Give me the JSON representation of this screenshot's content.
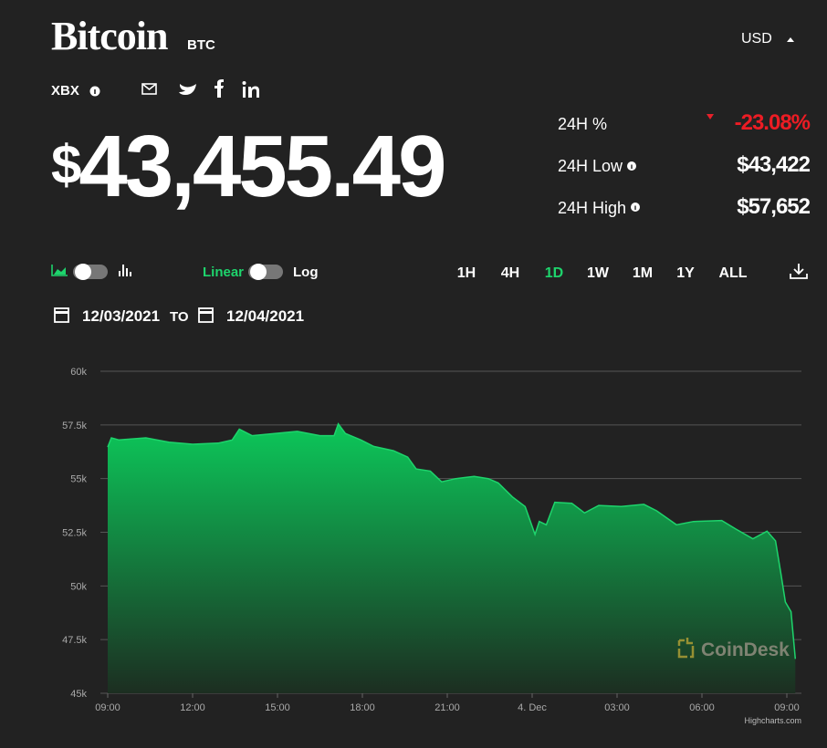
{
  "header": {
    "title": "Bitcoin",
    "symbol": "BTC",
    "currency": "USD",
    "index": "XBX"
  },
  "price": {
    "symbol": "$",
    "amount": "43,455.49"
  },
  "stats": [
    {
      "label": "24H %",
      "value": "-23.08%"
    },
    {
      "label": "24H Low",
      "value": "$43,422"
    },
    {
      "label": "24H High",
      "value": "$57,652"
    }
  ],
  "controls": {
    "scale_options": [
      "Linear",
      "Log"
    ],
    "ranges": [
      "1H",
      "4H",
      "1D",
      "1W",
      "1M",
      "1Y",
      "ALL"
    ],
    "active_range": "1D"
  },
  "date_range": {
    "from": "12/03/2021",
    "separator": "TO",
    "to": "12/04/2021"
  },
  "chart_data": {
    "type": "area",
    "color": "#1ed46c",
    "x": [
      0,
      0.13,
      0.4,
      1.35,
      2.16,
      3,
      3.9,
      4.4,
      4.65,
      5.1,
      5.9,
      6.7,
      7.5,
      8,
      8.15,
      8.4,
      8.95,
      9.4,
      10.1,
      10.6,
      10.9,
      11.4,
      11.8,
      12.3,
      12.95,
      13.45,
      13.8,
      14.3,
      14.75,
      15.1,
      15.25,
      15.5,
      15.8,
      16.4,
      16.85,
      17.35,
      18.15,
      18.95,
      19.4,
      20.1,
      20.7,
      21.7,
      22.2,
      22.8,
      23.3,
      23.6,
      23.8,
      23.95,
      24.15,
      24.3
    ],
    "values": [
      56470,
      56900,
      56800,
      56900,
      56700,
      56600,
      56650,
      56800,
      57300,
      57000,
      57100,
      57200,
      57000,
      57000,
      57550,
      57100,
      56800,
      56500,
      56300,
      56000,
      55450,
      55350,
      54850,
      55000,
      55100,
      55000,
      54800,
      54150,
      53700,
      52400,
      53000,
      52850,
      53900,
      53850,
      53400,
      53750,
      53700,
      53800,
      53500,
      52850,
      53000,
      53050,
      52650,
      52200,
      52550,
      52100,
      50500,
      49250,
      48800,
      46600
    ],
    "xlim": [
      0,
      24.5
    ],
    "xticks": [
      {
        "value": 0,
        "label": "09:00"
      },
      {
        "value": 3,
        "label": "12:00"
      },
      {
        "value": 6,
        "label": "15:00"
      },
      {
        "value": 9,
        "label": "18:00"
      },
      {
        "value": 12,
        "label": "21:00"
      },
      {
        "value": 15,
        "label": "4. Dec"
      },
      {
        "value": 18,
        "label": "03:00"
      },
      {
        "value": 21,
        "label": "06:00"
      },
      {
        "value": 24,
        "label": "09:00"
      }
    ],
    "ylim": [
      45000,
      60000
    ],
    "yticks": [
      {
        "value": 45000,
        "label": "45k"
      },
      {
        "value": 47500,
        "label": "47.5k"
      },
      {
        "value": 50000,
        "label": "50k"
      },
      {
        "value": 52500,
        "label": "52.5k"
      },
      {
        "value": 55000,
        "label": "55k"
      },
      {
        "value": 57500,
        "label": "57.5k"
      },
      {
        "value": 60000,
        "label": "60k"
      }
    ],
    "grid": true,
    "watermark": "CoinDesk",
    "credits": "Highcharts.com"
  }
}
